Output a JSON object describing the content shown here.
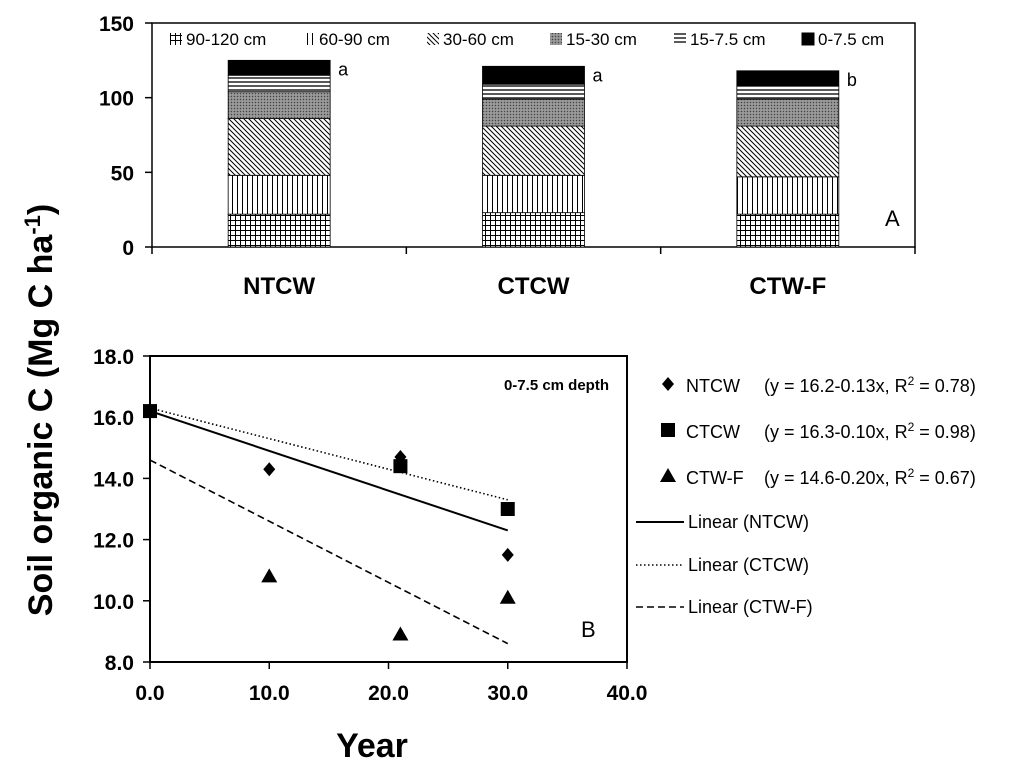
{
  "y_axis_title_main": "Soil organic C (Mg C ha",
  "y_axis_title_sup": "-1",
  "y_axis_title_end": ")",
  "chart_data": [
    {
      "type": "bar",
      "stacked": true,
      "panel_label": "A",
      "categories": [
        "NTCW",
        "CTCW",
        "CTW-F"
      ],
      "ylim": [
        0,
        150
      ],
      "y_ticks": [
        "0",
        "50",
        "100",
        "150"
      ],
      "legend_placement": "top",
      "series": [
        {
          "name": "90-120 cm",
          "legend_symbol": "#",
          "values": [
            22,
            23,
            22
          ]
        },
        {
          "name": "60-90 cm",
          "legend_symbol": "II",
          "values": [
            26,
            25,
            25
          ]
        },
        {
          "name": "30-60 cm",
          "legend_symbol": "\\\\",
          "values": [
            38,
            33,
            34
          ]
        },
        {
          "name": "15-30 cm",
          "legend_symbol": "gray",
          "values": [
            18,
            18,
            18
          ]
        },
        {
          "name": "15-7.5 cm",
          "legend_symbol": "≡",
          "values": [
            11,
            10,
            9
          ]
        },
        {
          "name": "0-7.5 cm",
          "legend_symbol": "black",
          "values": [
            10,
            12,
            10
          ]
        }
      ],
      "significance_letters": [
        "a",
        "a",
        "b"
      ]
    },
    {
      "type": "scatter",
      "panel_label": "B",
      "annotation": "0-7.5 cm depth",
      "xlabel": "Year",
      "xlim": [
        0,
        40
      ],
      "ylim": [
        8,
        18
      ],
      "x_ticks": [
        "0.0",
        "10.0",
        "20.0",
        "30.0",
        "40.0"
      ],
      "y_ticks": [
        "8.0",
        "10.0",
        "12.0",
        "14.0",
        "16.0",
        "18.0"
      ],
      "grid": false,
      "legend_placement": "right",
      "series": [
        {
          "name": "NTCW",
          "marker": "diamond",
          "equation": "(y = 16.2-0.13x, R",
          "r2_sup": "2",
          "r2_value": " = 0.78)",
          "points": [
            [
              0,
              16.2
            ],
            [
              10,
              14.3
            ],
            [
              21,
              14.7
            ],
            [
              30,
              11.5
            ]
          ]
        },
        {
          "name": "CTCW",
          "marker": "square",
          "equation": "(y = 16.3-0.10x, R",
          "r2_sup": "2",
          "r2_value": " = 0.98)",
          "points": [
            [
              0,
              16.2
            ],
            [
              21,
              14.4
            ],
            [
              30,
              13.0
            ]
          ]
        },
        {
          "name": "CTW-F",
          "marker": "triangle",
          "equation": "(y = 14.6-0.20x, R",
          "r2_sup": "2",
          "r2_value": " = 0.67)",
          "points": [
            [
              10,
              10.8
            ],
            [
              21,
              8.9
            ],
            [
              30,
              10.1
            ]
          ]
        }
      ],
      "trendlines": [
        {
          "name": "Linear (NTCW)",
          "style": "solid",
          "intercept": 16.2,
          "slope": -0.13,
          "x_range": [
            0,
            30
          ]
        },
        {
          "name": "Linear (CTCW)",
          "style": "dotted",
          "intercept": 16.3,
          "slope": -0.1,
          "x_range": [
            0,
            30
          ]
        },
        {
          "name": "Linear (CTW-F)",
          "style": "dashed",
          "intercept": 14.6,
          "slope": -0.2,
          "x_range": [
            0,
            30
          ]
        }
      ]
    }
  ]
}
